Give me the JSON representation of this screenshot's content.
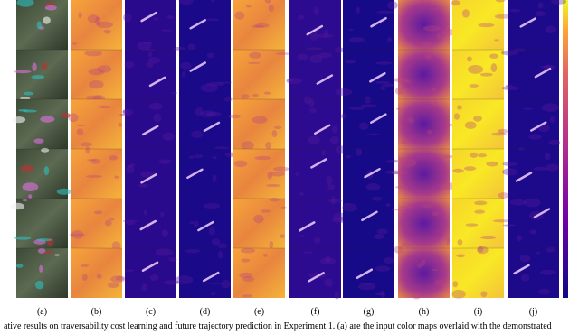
{
  "figure": {
    "panel_labels": [
      "(a)",
      "(b)",
      "(c)",
      "(d)",
      "(e)",
      "(f)",
      "(g)",
      "(h)",
      "(i)",
      "(j)"
    ],
    "caption": "ative results on traversability cost learning and future trajectory prediction in Experiment 1. (a) are the input color maps overlaid with the demonstrated"
  }
}
